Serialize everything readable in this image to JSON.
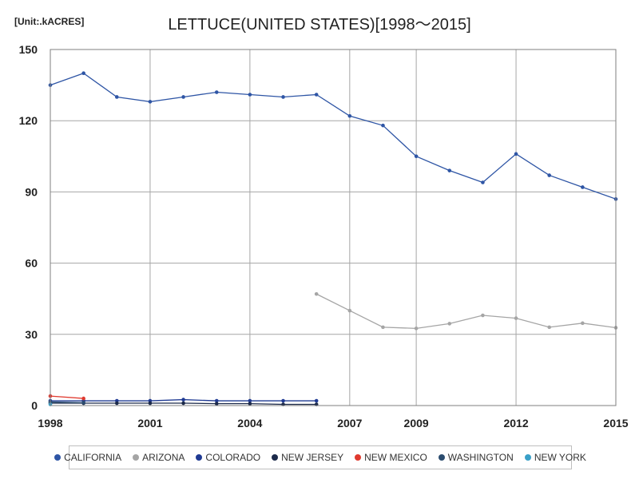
{
  "unit_label": "[Unit:.kACRES]",
  "chart_data": {
    "type": "line",
    "title": "LETTUCE(UNITED STATES)[1998～2015]",
    "xlim": [
      1998,
      2015
    ],
    "ylim": [
      0,
      150
    ],
    "x_ticks": [
      1998,
      2001,
      2004,
      2007,
      2009,
      2012,
      2015
    ],
    "y_ticks": [
      0,
      30,
      60,
      90,
      120,
      150
    ],
    "grid": true,
    "legend_position": "bottom",
    "series": [
      {
        "name": "CALIFORNIA",
        "color": "#2e55a5",
        "x": [
          1998,
          1999,
          2000,
          2001,
          2002,
          2003,
          2004,
          2005,
          2006,
          2007,
          2008,
          2009,
          2010,
          2011,
          2012,
          2013,
          2014,
          2015
        ],
        "values": [
          135,
          140,
          130,
          128,
          130,
          132,
          131,
          130,
          131,
          122,
          118,
          105,
          99,
          94,
          106,
          97,
          92,
          87
        ]
      },
      {
        "name": "ARIZONA",
        "color": "#a5a5a5",
        "x": [
          2006,
          2007,
          2008,
          2009,
          2010,
          2011,
          2012,
          2013,
          2014,
          2015
        ],
        "values": [
          47,
          40,
          33,
          32.5,
          34.5,
          38,
          36.8,
          33,
          34.7,
          32.8
        ]
      },
      {
        "name": "COLORADO",
        "color": "#1f3a93",
        "x": [
          1998,
          1999,
          2000,
          2001,
          2002,
          2003,
          2004,
          2005,
          2006
        ],
        "values": [
          2,
          2,
          2,
          2,
          2.5,
          2,
          2,
          2,
          2
        ]
      },
      {
        "name": "NEW JERSEY",
        "color": "#1c2a4a",
        "x": [
          1998,
          1999,
          2000,
          2001,
          2002,
          2003,
          2004,
          2005,
          2006
        ],
        "values": [
          1,
          1,
          1,
          1,
          1,
          0.8,
          0.8,
          0.5,
          0.5
        ]
      },
      {
        "name": "NEW MEXICO",
        "color": "#e03a2f",
        "x": [
          1998,
          1999
        ],
        "values": [
          4,
          3
        ]
      },
      {
        "name": "WASHINGTON",
        "color": "#2b4c6f",
        "x": [
          1998,
          1999
        ],
        "values": [
          1.5,
          1.2
        ]
      },
      {
        "name": "NEW YORK",
        "color": "#3aa0c8",
        "x": [
          1998
        ],
        "values": [
          0.5
        ]
      }
    ]
  }
}
